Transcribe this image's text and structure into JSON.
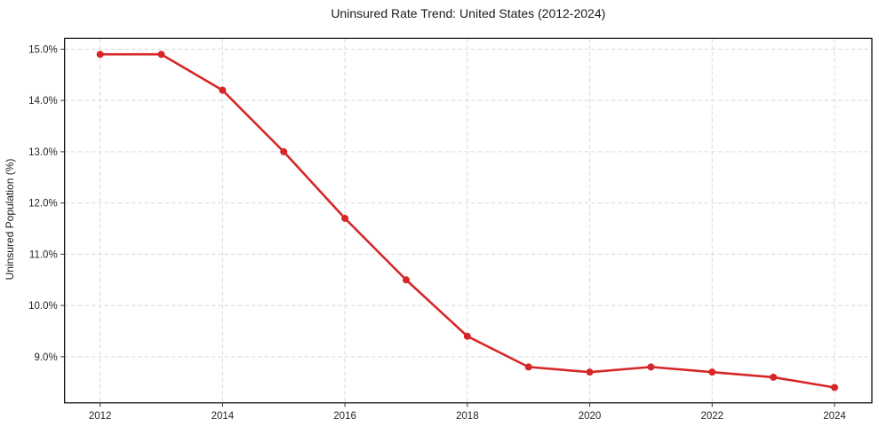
{
  "figure": {
    "background_color": "#ffffff"
  },
  "chart_data": {
    "type": "line",
    "title": "Uninsured Rate Trend: United States (2012-2024)",
    "xlabel": "",
    "ylabel": "Uninsured Population (%)",
    "x": [
      2012,
      2013,
      2014,
      2015,
      2016,
      2017,
      2018,
      2019,
      2020,
      2021,
      2022,
      2023,
      2024
    ],
    "series": [
      {
        "values": [
          14.9,
          14.9,
          14.2,
          13.0,
          11.7,
          10.5,
          9.4,
          8.8,
          8.7,
          8.8,
          8.7,
          8.6,
          8.4
        ],
        "color": "#d62728",
        "marker": "circle"
      }
    ],
    "xticks": [
      2012,
      2014,
      2016,
      2018,
      2020,
      2022,
      2024
    ],
    "yticks": [
      9.0,
      10.0,
      11.0,
      12.0,
      13.0,
      14.0,
      15.0
    ],
    "ytick_suffix": "%",
    "xlim": [
      2011.42,
      2024.61
    ],
    "ylim": [
      8.1,
      15.21
    ],
    "grid": true,
    "grid_style": "dashed",
    "grid_color": "#d9d9d9",
    "axis_color": "#000000",
    "tick_color": "#333333",
    "text_color": "#262626",
    "legend_position": "none"
  }
}
